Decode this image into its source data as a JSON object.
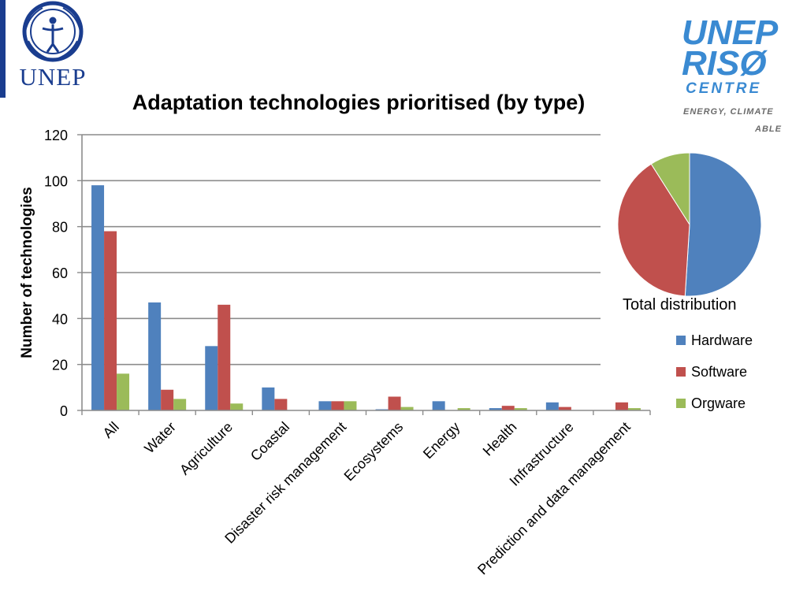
{
  "logos": {
    "unep_left": "UNEP",
    "riso": {
      "line1": "UNEP",
      "line2": "RISØ",
      "line3": "CENTRE",
      "line4": "ENERGY, CLIMATE",
      "line5": "ABLE"
    }
  },
  "title": "Adaptation technologies prioritised (by type)",
  "colors": {
    "hardware": "#4f81bd",
    "software": "#c0504d",
    "orgware": "#9bbb59"
  },
  "chart_data": [
    {
      "type": "bar",
      "title": "Adaptation technologies prioritised (by type)",
      "xlabel": "",
      "ylabel": "Number of technologies",
      "ylim": [
        0,
        120
      ],
      "yticks": [
        "0",
        "20",
        "40",
        "60",
        "80",
        "100",
        "120"
      ],
      "grid": true,
      "legend_position": "right",
      "categories": [
        "All",
        "Water",
        "Agriculture",
        "Coastal",
        "Disaster risk management",
        "Ecosystems",
        "Energy",
        "Health",
        "Infrastructure",
        "Prediction and data management"
      ],
      "series": [
        {
          "name": "Hardware",
          "values": [
            98,
            47,
            28,
            10,
            4,
            0.5,
            4,
            1,
            3.5,
            0
          ]
        },
        {
          "name": "Software",
          "values": [
            78,
            9,
            46,
            5,
            4,
            6,
            0,
            2,
            1.5,
            3.5
          ]
        },
        {
          "name": "Orgware",
          "values": [
            16,
            5,
            3,
            0,
            4,
            1.5,
            1,
            1,
            0,
            1
          ]
        }
      ]
    },
    {
      "type": "pie",
      "title": "Total distribution",
      "labels": [
        "Hardware",
        "Software",
        "Orgware"
      ],
      "values": [
        51,
        40,
        9
      ]
    }
  ],
  "legend": {
    "items": [
      {
        "label": "Hardware",
        "color": "#4f81bd"
      },
      {
        "label": "Software",
        "color": "#c0504d"
      },
      {
        "label": "Orgware",
        "color": "#9bbb59"
      }
    ]
  }
}
